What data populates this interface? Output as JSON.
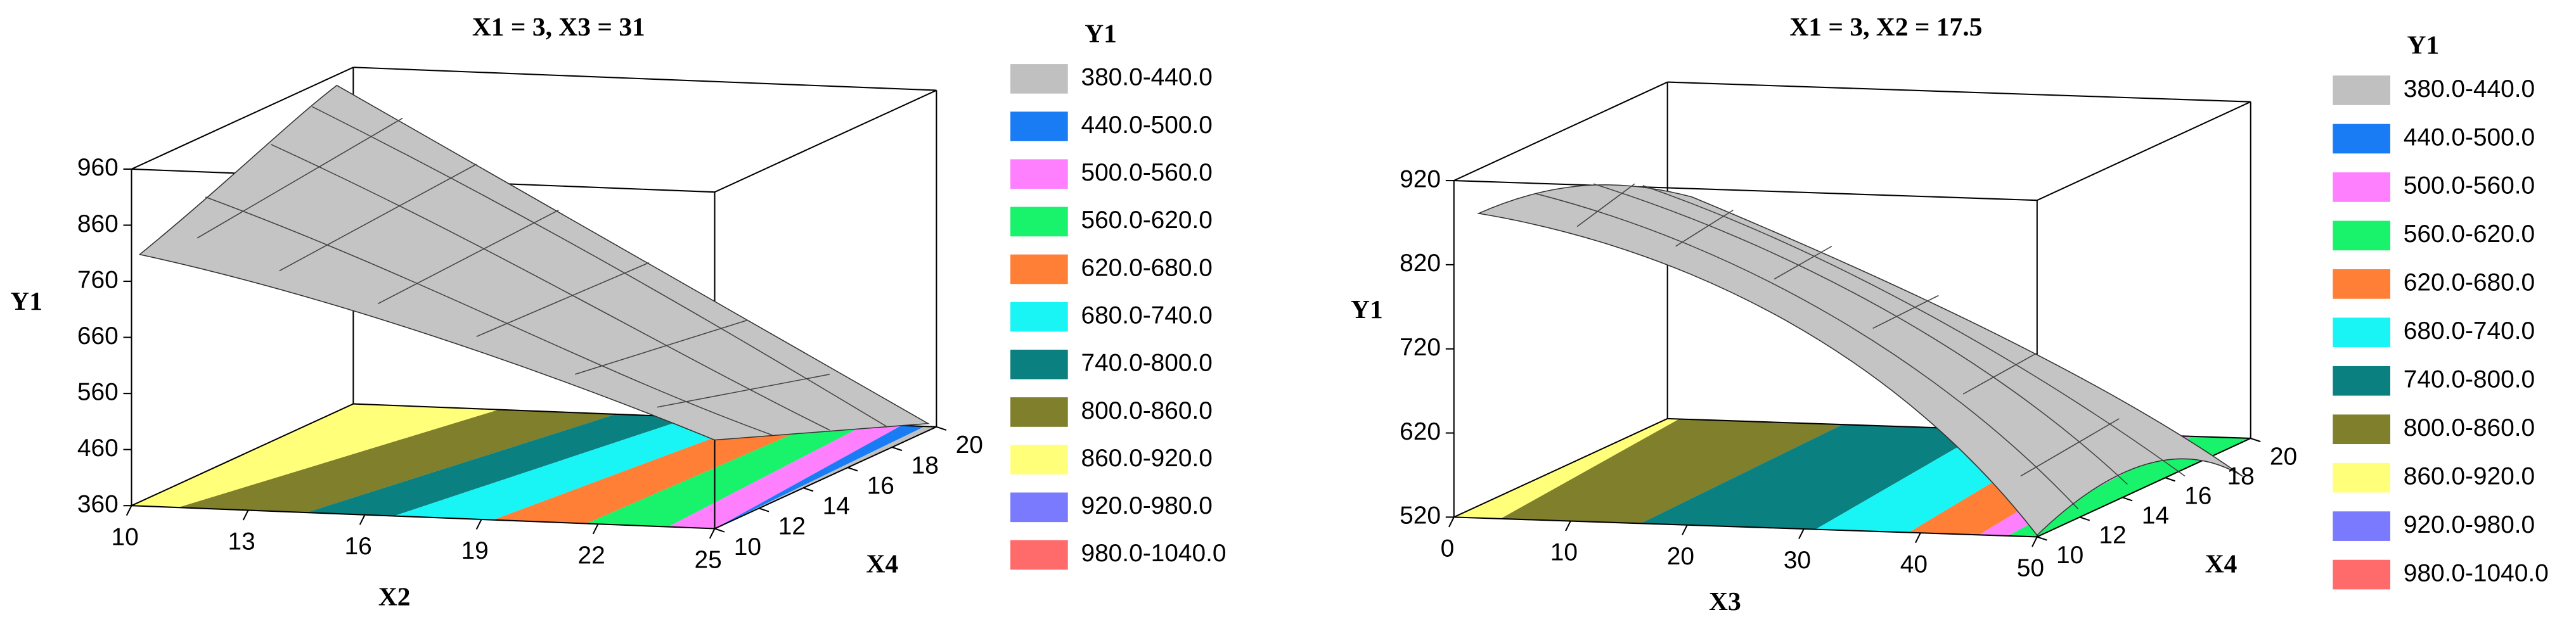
{
  "chart_data": [
    {
      "type": "surface",
      "title": "X1 = 3, X3 = 31",
      "legend_title": "Y1",
      "legend": [
        {
          "label": "380.0-440.0",
          "color": "#c0c0c0"
        },
        {
          "label": "440.0-500.0",
          "color": "#1a7cf5"
        },
        {
          "label": "500.0-560.0",
          "color": "#ff80ff"
        },
        {
          "label": "560.0-620.0",
          "color": "#19f26b"
        },
        {
          "label": "620.0-680.0",
          "color": "#ff7f36"
        },
        {
          "label": "680.0-740.0",
          "color": "#19f5f5"
        },
        {
          "label": "740.0-800.0",
          "color": "#0b8080"
        },
        {
          "label": "800.0-860.0",
          "color": "#7f7f2c"
        },
        {
          "label": "860.0-920.0",
          "color": "#ffff7a"
        },
        {
          "label": "920.0-980.0",
          "color": "#7a7aff"
        },
        {
          "label": "980.0-1040.0",
          "color": "#ff6b6b"
        }
      ],
      "x_label": "X2",
      "xlim": [
        10,
        25
      ],
      "xticks": [
        10,
        13,
        16,
        19,
        22,
        25
      ],
      "y_label": "X4",
      "ylim": [
        10,
        20
      ],
      "yticks": [
        10,
        12,
        14,
        16,
        18,
        20
      ],
      "z_label": "Y1",
      "zlim": [
        360,
        960
      ],
      "zticks": [
        360,
        460,
        560,
        660,
        760,
        860,
        960
      ]
    },
    {
      "type": "surface",
      "title": "X1 = 3, X2 = 17.5",
      "legend_title": "Y1",
      "legend": [
        {
          "label": "380.0-440.0",
          "color": "#c0c0c0"
        },
        {
          "label": "440.0-500.0",
          "color": "#1a7cf5"
        },
        {
          "label": "500.0-560.0",
          "color": "#ff80ff"
        },
        {
          "label": "560.0-620.0",
          "color": "#19f26b"
        },
        {
          "label": "620.0-680.0",
          "color": "#ff7f36"
        },
        {
          "label": "680.0-740.0",
          "color": "#19f5f5"
        },
        {
          "label": "740.0-800.0",
          "color": "#0b8080"
        },
        {
          "label": "800.0-860.0",
          "color": "#7f7f2c"
        },
        {
          "label": "860.0-920.0",
          "color": "#ffff7a"
        },
        {
          "label": "920.0-980.0",
          "color": "#7a7aff"
        },
        {
          "label": "980.0-1040.0",
          "color": "#ff6b6b"
        }
      ],
      "x_label": "X3",
      "xlim": [
        0,
        50
      ],
      "xticks": [
        0,
        10,
        20,
        30,
        40,
        50
      ],
      "y_label": "X4",
      "ylim": [
        10,
        20
      ],
      "yticks": [
        10,
        12,
        14,
        16,
        18,
        20
      ],
      "z_label": "Y1",
      "zlim": [
        520,
        920
      ],
      "zticks": [
        520,
        620,
        720,
        820,
        920
      ]
    }
  ]
}
